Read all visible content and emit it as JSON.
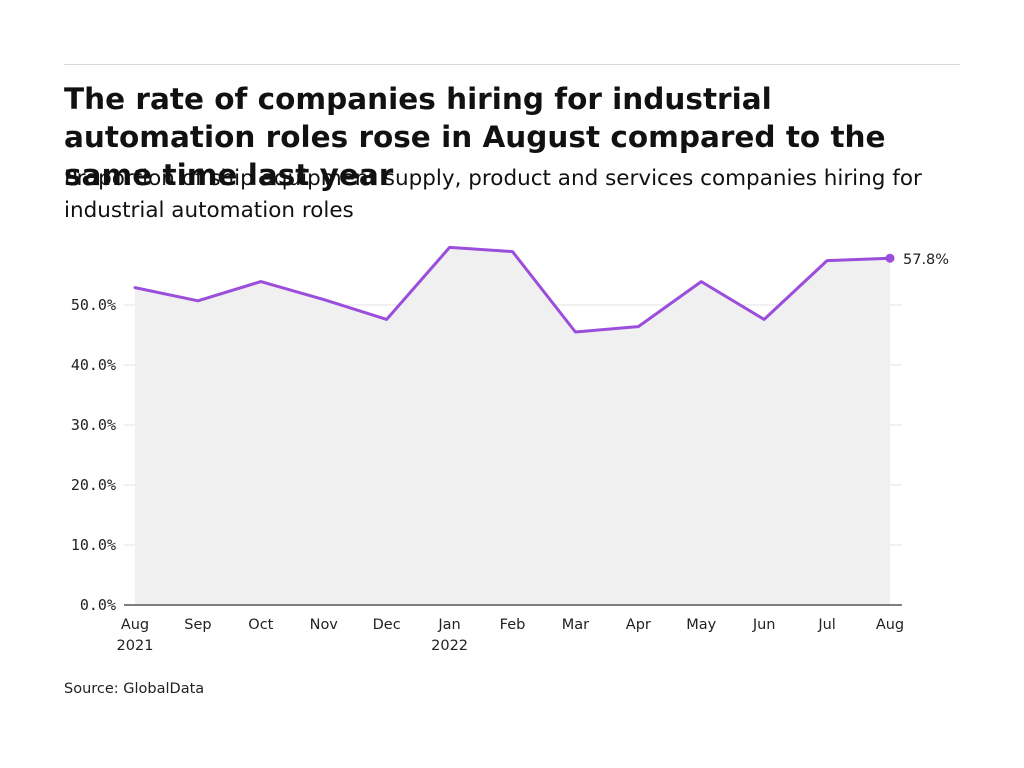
{
  "title": "The rate of companies hiring for industrial automation roles rose in August compared to the same time last year",
  "subtitle": "Proportion of ship equipment supply, product and services companies hiring for industrial automation roles",
  "source": "Source: GlobalData",
  "colors": {
    "line": "#9b4ddb",
    "area": "#f0f0f0",
    "grid": "#e3e3e3",
    "axis": "#333333"
  },
  "chart_data": {
    "type": "line",
    "title": "The rate of companies hiring for industrial automation roles rose in August compared to the same time last year",
    "subtitle": "Proportion of ship equipment supply, product and services companies hiring for industrial automation roles",
    "xlabel": "",
    "ylabel": "",
    "x": [
      "Aug 2021",
      "Sep 2021",
      "Oct 2021",
      "Nov 2021",
      "Dec 2021",
      "Jan 2022",
      "Feb 2022",
      "Mar 2022",
      "Apr 2022",
      "May 2022",
      "Jun 2022",
      "Jul 2022",
      "Aug 2022"
    ],
    "x_tick_labels": [
      {
        "month": "Aug",
        "year": "2021"
      },
      {
        "month": "Sep",
        "year": ""
      },
      {
        "month": "Oct",
        "year": ""
      },
      {
        "month": "Nov",
        "year": ""
      },
      {
        "month": "Dec",
        "year": ""
      },
      {
        "month": "Jan",
        "year": "2022"
      },
      {
        "month": "Feb",
        "year": ""
      },
      {
        "month": "Mar",
        "year": ""
      },
      {
        "month": "Apr",
        "year": ""
      },
      {
        "month": "May",
        "year": ""
      },
      {
        "month": "Jun",
        "year": ""
      },
      {
        "month": "Jul",
        "year": ""
      },
      {
        "month": "Aug",
        "year": ""
      }
    ],
    "series": [
      {
        "values": [
          52.9,
          50.7,
          53.9,
          50.9,
          47.6,
          59.6,
          58.9,
          45.5,
          46.4,
          53.9,
          47.6,
          57.4,
          57.8
        ]
      }
    ],
    "y_ticks": [
      0,
      10,
      20,
      30,
      40,
      50
    ],
    "y_tick_labels": [
      "0.0%",
      "10.0%",
      "20.0%",
      "30.0%",
      "40.0%",
      "50.0%"
    ],
    "ylim": [
      0,
      60
    ],
    "grid": true,
    "area_fill": true,
    "end_label": "57.8%"
  }
}
